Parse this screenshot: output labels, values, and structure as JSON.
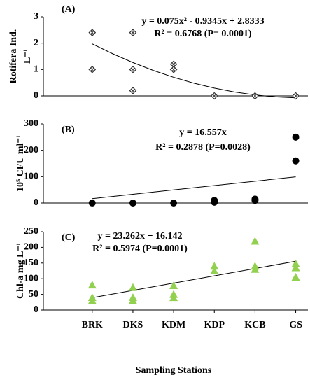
{
  "chart_data": [
    {
      "type": "scatter",
      "panel_label": "(A)",
      "ylabel": [
        "Rotifera Ind.",
        "L⁻¹"
      ],
      "equation": "y = 0.075x² - 0.9345x + 2.8333",
      "r_squared": "R² = 0.6768 (P= 0.0001)",
      "marker": "diamond-cross",
      "color": "#333333",
      "x": [
        1,
        1,
        2,
        2,
        2,
        3,
        3,
        4,
        5,
        6
      ],
      "y": [
        2.4,
        1.0,
        2.4,
        1.0,
        0.2,
        1.2,
        1.0,
        0,
        0,
        0
      ],
      "trendline": {
        "x": [
          1,
          1.5,
          2,
          2.5,
          3,
          3.5,
          4,
          4.5,
          5,
          5.5,
          6
        ],
        "y": [
          1.974,
          1.6,
          1.264,
          0.966,
          0.705,
          0.481,
          0.295,
          0.147,
          0.036,
          -0.038,
          -0.074
        ]
      },
      "xlim": [
        -0.2,
        6.3
      ],
      "ylim": [
        0,
        3
      ],
      "yticks": [
        0,
        1,
        2,
        3
      ]
    },
    {
      "type": "scatter",
      "panel_label": "(B)",
      "ylabel": [
        "10⁵ CFU ml⁻¹"
      ],
      "equation": "y = 16.557x",
      "r_squared": "R² = 0.2878 (P=0.0028)",
      "marker": "circle",
      "color": "#000000",
      "x": [
        1,
        2,
        3,
        4,
        4,
        5,
        5,
        6,
        6
      ],
      "y": [
        0,
        0,
        0,
        10,
        3,
        15,
        10,
        250,
        160
      ],
      "trendline": {
        "x": [
          1,
          6
        ],
        "y": [
          16.6,
          99.3
        ]
      },
      "xlim": [
        -0.2,
        6.3
      ],
      "ylim": [
        0,
        300
      ],
      "yticks": [
        0,
        100,
        200,
        300
      ]
    },
    {
      "type": "scatter",
      "panel_label": "(C)",
      "ylabel": [
        "Chl-a mg L⁻¹"
      ],
      "equation": "y = 23.262x + 16.142",
      "r_squared": "R² = 0.5974 (P=0.0001)",
      "marker": "triangle",
      "color": "#92d050",
      "xlabel": "Sampling Stations",
      "x": [
        1,
        1,
        1,
        2,
        2,
        2,
        3,
        3,
        3,
        4,
        4,
        5,
        5,
        5,
        6,
        6,
        6
      ],
      "y": [
        80,
        40,
        30,
        72,
        40,
        30,
        78,
        50,
        40,
        140,
        125,
        220,
        140,
        130,
        148,
        135,
        105
      ],
      "trendline": {
        "x": [
          1,
          6
        ],
        "y": [
          39.4,
          155.7
        ]
      },
      "xlim": [
        -0.2,
        6.3
      ],
      "ylim": [
        0,
        250
      ],
      "yticks": [
        0,
        50,
        100,
        150,
        200,
        250
      ],
      "xticks": [
        {
          "value": 1,
          "label": "BRK"
        },
        {
          "value": 2,
          "label": "DKS"
        },
        {
          "value": 3,
          "label": "KDM"
        },
        {
          "value": 4,
          "label": "KDP"
        },
        {
          "value": 5,
          "label": "KCB"
        },
        {
          "value": 6,
          "label": "GS"
        }
      ]
    }
  ]
}
